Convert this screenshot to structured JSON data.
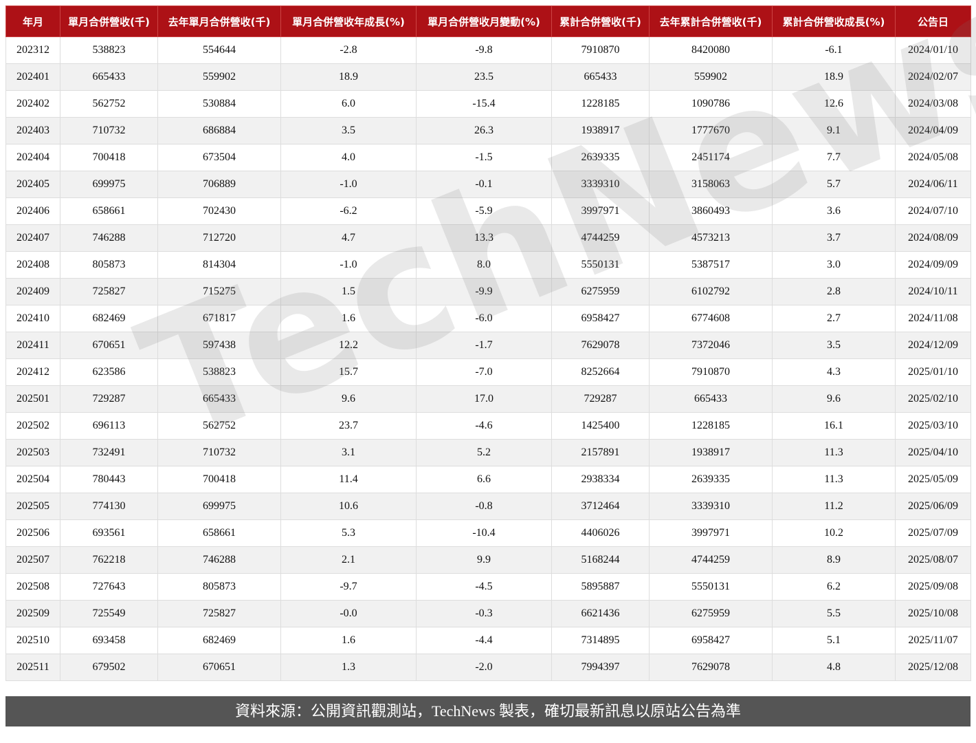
{
  "table": {
    "headers": [
      "年月",
      "單月合併營收(千)",
      "去年單月合併營收(千)",
      "單月合併營收年成長(%)",
      "單月合併營收月變動(%)",
      "累計合併營收(千)",
      "去年累計合併營收(千)",
      "累計合併營收成長(%)",
      "公告日"
    ],
    "rows": [
      [
        "202312",
        "538823",
        "554644",
        "-2.8",
        "-9.8",
        "7910870",
        "8420080",
        "-6.1",
        "2024/01/10"
      ],
      [
        "202401",
        "665433",
        "559902",
        "18.9",
        "23.5",
        "665433",
        "559902",
        "18.9",
        "2024/02/07"
      ],
      [
        "202402",
        "562752",
        "530884",
        "6.0",
        "-15.4",
        "1228185",
        "1090786",
        "12.6",
        "2024/03/08"
      ],
      [
        "202403",
        "710732",
        "686884",
        "3.5",
        "26.3",
        "1938917",
        "1777670",
        "9.1",
        "2024/04/09"
      ],
      [
        "202404",
        "700418",
        "673504",
        "4.0",
        "-1.5",
        "2639335",
        "2451174",
        "7.7",
        "2024/05/08"
      ],
      [
        "202405",
        "699975",
        "706889",
        "-1.0",
        "-0.1",
        "3339310",
        "3158063",
        "5.7",
        "2024/06/11"
      ],
      [
        "202406",
        "658661",
        "702430",
        "-6.2",
        "-5.9",
        "3997971",
        "3860493",
        "3.6",
        "2024/07/10"
      ],
      [
        "202407",
        "746288",
        "712720",
        "4.7",
        "13.3",
        "4744259",
        "4573213",
        "3.7",
        "2024/08/09"
      ],
      [
        "202408",
        "805873",
        "814304",
        "-1.0",
        "8.0",
        "5550131",
        "5387517",
        "3.0",
        "2024/09/09"
      ],
      [
        "202409",
        "725827",
        "715275",
        "1.5",
        "-9.9",
        "6275959",
        "6102792",
        "2.8",
        "2024/10/11"
      ],
      [
        "202410",
        "682469",
        "671817",
        "1.6",
        "-6.0",
        "6958427",
        "6774608",
        "2.7",
        "2024/11/08"
      ],
      [
        "202411",
        "670651",
        "597438",
        "12.2",
        "-1.7",
        "7629078",
        "7372046",
        "3.5",
        "2024/12/09"
      ],
      [
        "202412",
        "623586",
        "538823",
        "15.7",
        "-7.0",
        "8252664",
        "7910870",
        "4.3",
        "2025/01/10"
      ],
      [
        "202501",
        "729287",
        "665433",
        "9.6",
        "17.0",
        "729287",
        "665433",
        "9.6",
        "2025/02/10"
      ],
      [
        "202502",
        "696113",
        "562752",
        "23.7",
        "-4.6",
        "1425400",
        "1228185",
        "16.1",
        "2025/03/10"
      ],
      [
        "202503",
        "732491",
        "710732",
        "3.1",
        "5.2",
        "2157891",
        "1938917",
        "11.3",
        "2025/04/10"
      ],
      [
        "202504",
        "780443",
        "700418",
        "11.4",
        "6.6",
        "2938334",
        "2639335",
        "11.3",
        "2025/05/09"
      ],
      [
        "202505",
        "774130",
        "699975",
        "10.6",
        "-0.8",
        "3712464",
        "3339310",
        "11.2",
        "2025/06/09"
      ],
      [
        "202506",
        "693561",
        "658661",
        "5.3",
        "-10.4",
        "4406026",
        "3997971",
        "10.2",
        "2025/07/09"
      ],
      [
        "202507",
        "762218",
        "746288",
        "2.1",
        "9.9",
        "5168244",
        "4744259",
        "8.9",
        "2025/08/07"
      ],
      [
        "202508",
        "727643",
        "805873",
        "-9.7",
        "-4.5",
        "5895887",
        "5550131",
        "6.2",
        "2025/09/08"
      ],
      [
        "202509",
        "725549",
        "725827",
        "-0.0",
        "-0.3",
        "6621436",
        "6275959",
        "5.5",
        "2025/10/08"
      ],
      [
        "202510",
        "693458",
        "682469",
        "1.6",
        "-4.4",
        "7314895",
        "6958427",
        "5.1",
        "2025/11/07"
      ],
      [
        "202511",
        "679502",
        "670651",
        "1.3",
        "-2.0",
        "7994397",
        "7629078",
        "4.8",
        "2025/12/08"
      ]
    ]
  },
  "watermark": "TechNews",
  "footer": "資料來源：公開資訊觀測站，TechNews 製表，確切最新訊息以原站公告為準"
}
